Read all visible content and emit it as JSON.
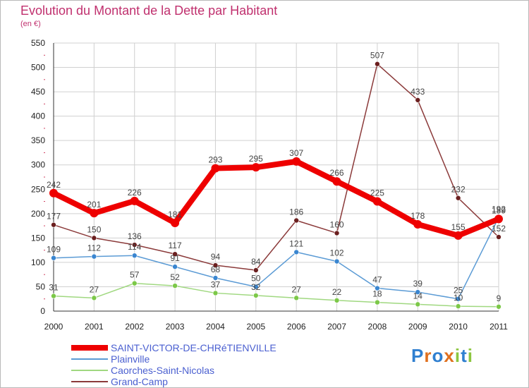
{
  "title": "Evolution du Montant de la Dette par Habitant",
  "subtitle": "(en €)",
  "logo_text": "Proxiti",
  "colors": {
    "title": "#c0306e",
    "grid": "#d0d0d0",
    "axis": "#333333",
    "tick_label": "#222222",
    "value_label": "#444444",
    "legend_text": "#4a5fd0"
  },
  "chart_data": {
    "type": "line",
    "x": [
      "2000",
      "2001",
      "2002",
      "2003",
      "2004",
      "2005",
      "2006",
      "2007",
      "2008",
      "2009",
      "2010",
      "2011"
    ],
    "ylim": [
      0,
      550
    ],
    "yticks": [
      0,
      50,
      100,
      150,
      200,
      250,
      300,
      350,
      400,
      450,
      500,
      550
    ],
    "grid": true,
    "legend_position": "bottom-left",
    "series": [
      {
        "name": "SAINT-VICTOR-DE-CHRéTIENVILLE",
        "color": "#ee0000",
        "marker": "#ee0000",
        "width": 8,
        "values": [
          242,
          201,
          226,
          181,
          293,
          295,
          307,
          266,
          225,
          178,
          155,
          189
        ]
      },
      {
        "name": "Plainville",
        "color": "#5b9bd5",
        "marker": "#3a86d0",
        "width": 1.5,
        "values": [
          109,
          112,
          114,
          91,
          68,
          50,
          121,
          102,
          47,
          39,
          25,
          192
        ]
      },
      {
        "name": "Caorches-Saint-Nicolas",
        "color": "#a0d880",
        "marker": "#7cc848",
        "width": 1.5,
        "values": [
          31,
          27,
          57,
          52,
          37,
          32,
          27,
          22,
          18,
          14,
          10,
          9
        ]
      },
      {
        "name": "Grand-Camp",
        "color": "#8b3a3a",
        "marker": "#6b1f1f",
        "width": 1.5,
        "values": [
          177,
          150,
          136,
          117,
          94,
          84,
          186,
          160,
          507,
          433,
          232,
          152
        ]
      }
    ],
    "data_labels": [
      {
        "series": 0,
        "index": 0,
        "text": "242"
      },
      {
        "series": 0,
        "index": 1,
        "text": "201"
      },
      {
        "series": 0,
        "index": 2,
        "text": "226"
      },
      {
        "series": 0,
        "index": 3,
        "text": "181"
      },
      {
        "series": 0,
        "index": 4,
        "text": "293"
      },
      {
        "series": 0,
        "index": 5,
        "text": "295"
      },
      {
        "series": 0,
        "index": 6,
        "text": "307"
      },
      {
        "series": 0,
        "index": 7,
        "text": "266"
      },
      {
        "series": 0,
        "index": 8,
        "text": "225"
      },
      {
        "series": 0,
        "index": 9,
        "text": "178"
      },
      {
        "series": 0,
        "index": 10,
        "text": "155"
      },
      {
        "series": 0,
        "index": 11,
        "text": "189"
      },
      {
        "series": 1,
        "index": 0,
        "text": "109"
      },
      {
        "series": 1,
        "index": 1,
        "text": "112"
      },
      {
        "series": 1,
        "index": 2,
        "text": "114"
      },
      {
        "series": 1,
        "index": 3,
        "text": "91"
      },
      {
        "series": 1,
        "index": 4,
        "text": "68"
      },
      {
        "series": 1,
        "index": 5,
        "text": "50"
      },
      {
        "series": 1,
        "index": 6,
        "text": "121"
      },
      {
        "series": 1,
        "index": 7,
        "text": "102"
      },
      {
        "series": 1,
        "index": 8,
        "text": "47"
      },
      {
        "series": 1,
        "index": 9,
        "text": "39"
      },
      {
        "series": 1,
        "index": 10,
        "text": "25"
      },
      {
        "series": 1,
        "index": 11,
        "text": "192"
      },
      {
        "series": 2,
        "index": 0,
        "text": "31"
      },
      {
        "series": 2,
        "index": 1,
        "text": "27"
      },
      {
        "series": 2,
        "index": 2,
        "text": "57"
      },
      {
        "series": 2,
        "index": 3,
        "text": "52"
      },
      {
        "series": 2,
        "index": 4,
        "text": "37"
      },
      {
        "series": 2,
        "index": 5,
        "text": "32"
      },
      {
        "series": 2,
        "index": 6,
        "text": "27"
      },
      {
        "series": 2,
        "index": 7,
        "text": "22"
      },
      {
        "series": 2,
        "index": 8,
        "text": "18"
      },
      {
        "series": 2,
        "index": 9,
        "text": "14"
      },
      {
        "series": 2,
        "index": 10,
        "text": "10"
      },
      {
        "series": 2,
        "index": 11,
        "text": "9"
      },
      {
        "series": 3,
        "index": 0,
        "text": "177"
      },
      {
        "series": 3,
        "index": 1,
        "text": "150"
      },
      {
        "series": 3,
        "index": 2,
        "text": "136"
      },
      {
        "series": 3,
        "index": 3,
        "text": "117"
      },
      {
        "series": 3,
        "index": 4,
        "text": "94"
      },
      {
        "series": 3,
        "index": 5,
        "text": "84"
      },
      {
        "series": 3,
        "index": 6,
        "text": "186"
      },
      {
        "series": 3,
        "index": 7,
        "text": "160"
      },
      {
        "series": 3,
        "index": 8,
        "text": "507"
      },
      {
        "series": 3,
        "index": 9,
        "text": "433"
      },
      {
        "series": 3,
        "index": 10,
        "text": "232"
      },
      {
        "series": 3,
        "index": 11,
        "text": "152"
      }
    ]
  }
}
